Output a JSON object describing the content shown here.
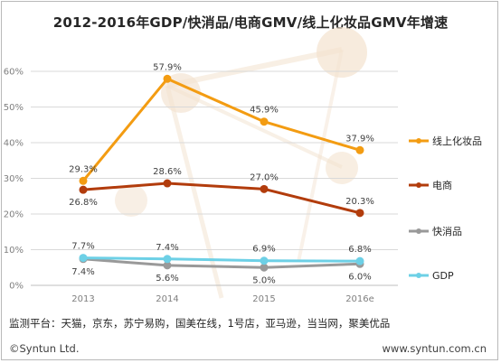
{
  "title": "2012-2016年GDP/快消品/电商GMV/线上化妆品GMV年增速",
  "source": "监测平台：天猫，京东，苏宁易购，国美在线，1号店，亚马逊，当当网，聚美优品",
  "copyright": "©Syntun Ltd.",
  "website": "www.syntun.com.cn",
  "colors": {
    "cosmetics": "#f39c12",
    "ecommerce": "#b23c0c",
    "fmcg": "#999999",
    "gdp": "#6dd0e6",
    "decor": "#f3e2cf"
  },
  "chart_data": {
    "type": "line",
    "categories": [
      "2013",
      "2014",
      "2015",
      "2016e"
    ],
    "ylim": [
      0,
      60
    ],
    "yticks": [
      "0%",
      "10%",
      "20%",
      "30%",
      "40%",
      "50%",
      "60%"
    ],
    "grid": true,
    "legend_position": "right",
    "series": [
      {
        "name": "线上化妆品",
        "key": "cosmetics",
        "values": [
          29.3,
          57.9,
          45.9,
          37.9
        ],
        "labels": [
          "29.3%",
          "57.9%",
          "45.9%",
          "37.9%"
        ],
        "label_pos": [
          "above",
          "above",
          "above",
          "above"
        ],
        "style": "dashdot"
      },
      {
        "name": "电商",
        "key": "ecommerce",
        "values": [
          26.8,
          28.6,
          27.0,
          20.3
        ],
        "labels": [
          "26.8%",
          "28.6%",
          "27.0%",
          "20.3%"
        ],
        "label_pos": [
          "below",
          "above",
          "above",
          "above"
        ],
        "style": "dashdot"
      },
      {
        "name": "快消品",
        "key": "fmcg",
        "values": [
          7.4,
          5.6,
          5.0,
          6.0
        ],
        "labels": [
          "7.4%",
          "5.6%",
          "5.0%",
          "6.0%"
        ],
        "label_pos": [
          "below",
          "below",
          "below",
          "below"
        ],
        "style": "solid"
      },
      {
        "name": "GDP",
        "key": "gdp",
        "values": [
          7.7,
          7.4,
          6.9,
          6.8
        ],
        "labels": [
          "7.7%",
          "7.4%",
          "6.9%",
          "6.8%"
        ],
        "label_pos": [
          "above",
          "above",
          "above",
          "above"
        ],
        "style": "solid"
      }
    ]
  }
}
